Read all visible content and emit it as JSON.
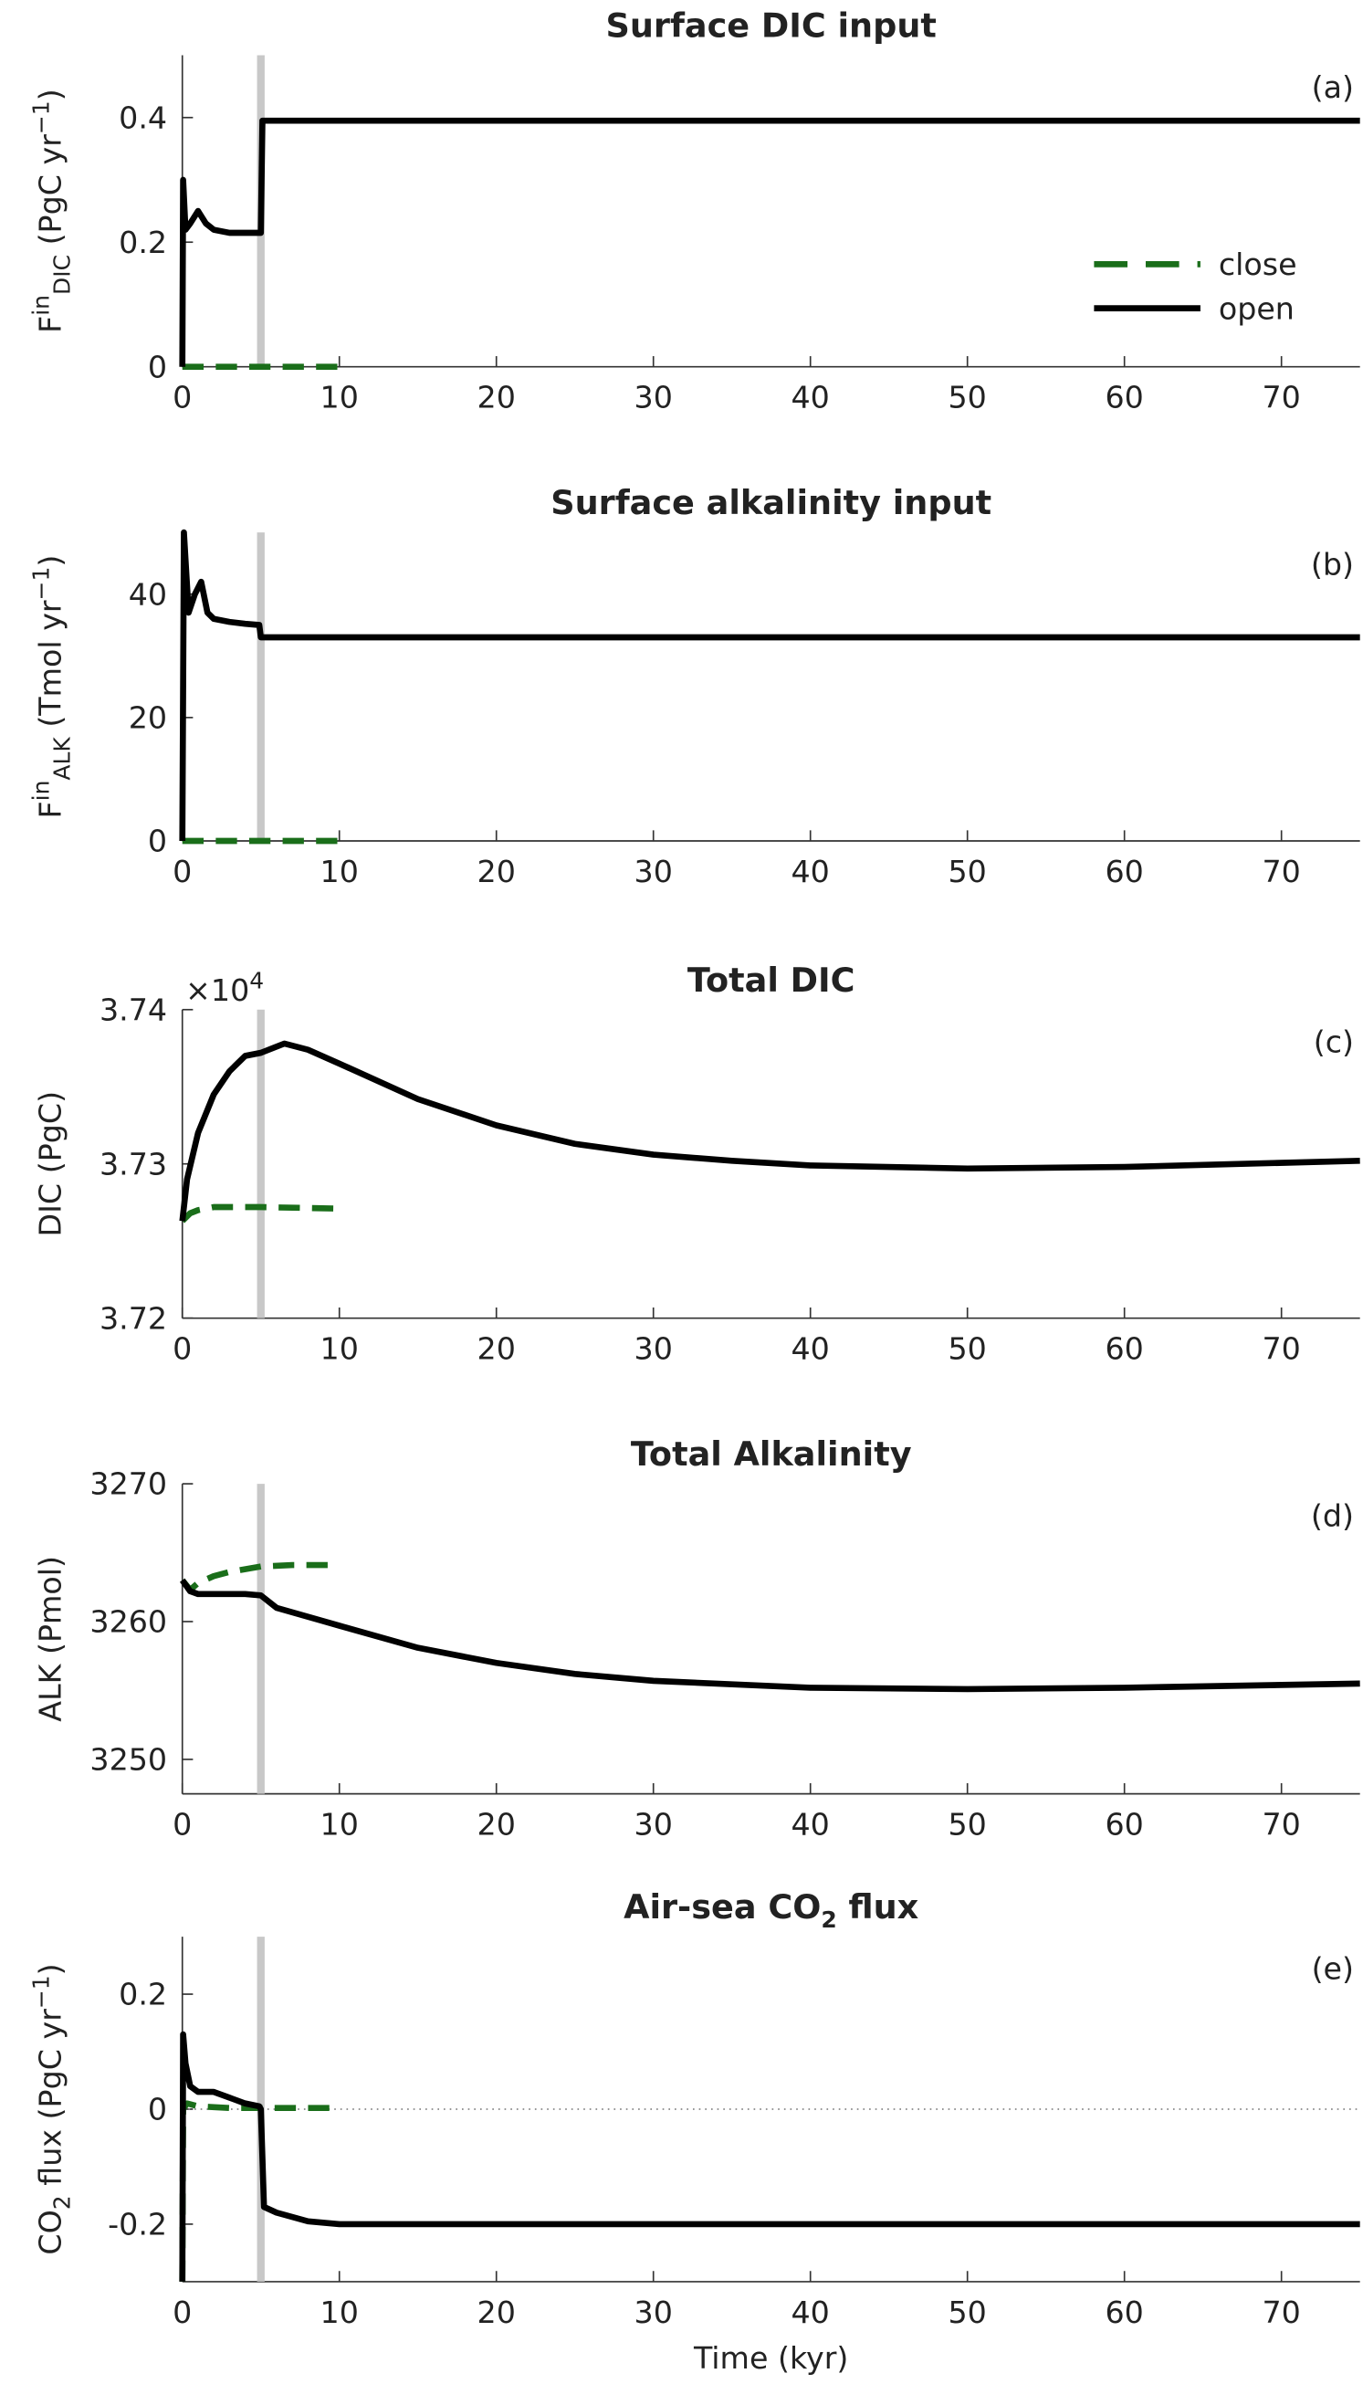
{
  "chart_data": [
    {
      "type": "line",
      "title": [
        {
          "text": "Surface DIC input"
        }
      ],
      "panel_label": "(a)",
      "ylabel": [
        {
          "text": "F"
        },
        {
          "text": "in",
          "style": "sup"
        },
        {
          "text": "DIC",
          "style": "sub"
        },
        {
          "text": " (PgC yr"
        },
        {
          "text": "−1",
          "style": "sup"
        },
        {
          "text": ")"
        }
      ],
      "xlim": [
        0,
        75
      ],
      "xticks": [
        0,
        10,
        20,
        30,
        40,
        50,
        60,
        70
      ],
      "ylim": [
        0,
        0.5
      ],
      "yticks": [
        0,
        0.2,
        0.4
      ],
      "vline": 5,
      "legend": "east",
      "series": [
        {
          "name": "close",
          "color": "#1a6e1a",
          "line_style": "dashed",
          "x": [
            0,
            10
          ],
          "values": [
            0,
            0
          ]
        },
        {
          "name": "open",
          "color": "#000000",
          "line_style": "solid",
          "x": [
            0,
            0.05,
            0.2,
            0.5,
            1,
            1.5,
            2,
            3,
            4,
            4.9,
            5,
            5.1,
            75
          ],
          "values": [
            0,
            0.3,
            0.22,
            0.23,
            0.25,
            0.23,
            0.22,
            0.215,
            0.215,
            0.215,
            0.215,
            0.395,
            0.395
          ]
        }
      ]
    },
    {
      "type": "line",
      "title": [
        {
          "text": "Surface alkalinity input"
        }
      ],
      "panel_label": "(b)",
      "ylabel": [
        {
          "text": "F"
        },
        {
          "text": "in",
          "style": "sup"
        },
        {
          "text": "ALK",
          "style": "sub"
        },
        {
          "text": " (Tmol yr"
        },
        {
          "text": "−1",
          "style": "sup"
        },
        {
          "text": ")"
        }
      ],
      "xlim": [
        0,
        75
      ],
      "xticks": [
        0,
        10,
        20,
        30,
        40,
        50,
        60,
        70
      ],
      "ylim": [
        0,
        50
      ],
      "yticks": [
        0,
        20,
        40
      ],
      "vline": 5,
      "series": [
        {
          "name": "close",
          "color": "#1a6e1a",
          "line_style": "dashed",
          "x": [
            0,
            10
          ],
          "values": [
            0,
            0
          ]
        },
        {
          "name": "open",
          "color": "#000000",
          "line_style": "solid",
          "x": [
            0,
            0.1,
            0.4,
            0.8,
            1.2,
            1.6,
            2,
            3,
            4,
            4.9,
            5,
            75
          ],
          "values": [
            0,
            50,
            37,
            40,
            42,
            37,
            36,
            35.5,
            35.2,
            35,
            33,
            33
          ]
        }
      ]
    },
    {
      "type": "line",
      "title": [
        {
          "text": "Total DIC"
        }
      ],
      "panel_label": "(c)",
      "ylabel": [
        {
          "text": "DIC (PgC)"
        }
      ],
      "y_multiplier": [
        {
          "text": "×10"
        },
        {
          "text": "4",
          "style": "sup"
        }
      ],
      "xlim": [
        0,
        75
      ],
      "xticks": [
        0,
        10,
        20,
        30,
        40,
        50,
        60,
        70
      ],
      "ylim": [
        3.72,
        3.74
      ],
      "yticks": [
        3.72,
        3.73,
        3.74
      ],
      "vline": 5,
      "series": [
        {
          "name": "close",
          "color": "#1a6e1a",
          "line_style": "dashed",
          "x": [
            0,
            0.5,
            1,
            2,
            3,
            5,
            10
          ],
          "values": [
            3.7263,
            3.7268,
            3.727,
            3.7272,
            3.7272,
            3.7272,
            3.7271
          ]
        },
        {
          "name": "open",
          "color": "#000000",
          "line_style": "solid",
          "x": [
            0,
            0.3,
            1,
            2,
            3,
            4,
            5,
            6.5,
            8,
            10,
            15,
            20,
            25,
            30,
            35,
            40,
            50,
            60,
            75
          ],
          "values": [
            3.7263,
            3.729,
            3.732,
            3.7345,
            3.736,
            3.737,
            3.7372,
            3.7378,
            3.7374,
            3.7365,
            3.7342,
            3.7325,
            3.7313,
            3.7306,
            3.7302,
            3.7299,
            3.7297,
            3.7298,
            3.7302
          ]
        }
      ]
    },
    {
      "type": "line",
      "title": [
        {
          "text": "Total Alkalinity"
        }
      ],
      "panel_label": "(d)",
      "ylabel": [
        {
          "text": "ALK (Pmol)"
        }
      ],
      "xlim": [
        0,
        75
      ],
      "xticks": [
        0,
        10,
        20,
        30,
        40,
        50,
        60,
        70
      ],
      "ylim": [
        3247.5,
        3270
      ],
      "yticks": [
        3250,
        3260,
        3270
      ],
      "vline": 5,
      "series": [
        {
          "name": "close",
          "color": "#1a6e1a",
          "line_style": "dashed",
          "x": [
            0,
            0.5,
            1,
            2,
            3,
            5,
            7,
            10
          ],
          "values": [
            3263,
            3262.3,
            3262.8,
            3263.3,
            3263.6,
            3264,
            3264.1,
            3264.1
          ]
        },
        {
          "name": "open",
          "color": "#000000",
          "line_style": "solid",
          "x": [
            0,
            0.5,
            1,
            2,
            3,
            4,
            5,
            6,
            10,
            15,
            20,
            25,
            30,
            40,
            50,
            60,
            75
          ],
          "values": [
            3263,
            3262.2,
            3262,
            3262,
            3262,
            3262,
            3261.9,
            3261,
            3259.7,
            3258.1,
            3257,
            3256.2,
            3255.7,
            3255.2,
            3255.1,
            3255.2,
            3255.5
          ]
        }
      ]
    },
    {
      "type": "line",
      "title": [
        {
          "text": "Air-sea CO"
        },
        {
          "text": "2",
          "style": "sub"
        },
        {
          "text": " flux"
        }
      ],
      "panel_label": "(e)",
      "ylabel": [
        {
          "text": "CO"
        },
        {
          "text": "2",
          "style": "sub"
        },
        {
          "text": " flux (PgC yr"
        },
        {
          "text": "−1",
          "style": "sup"
        },
        {
          "text": ")"
        }
      ],
      "xlabel": "Time (kyr)",
      "xlim": [
        0,
        75
      ],
      "xticks": [
        0,
        10,
        20,
        30,
        40,
        50,
        60,
        70
      ],
      "ylim": [
        -0.3,
        0.3
      ],
      "yticks": [
        -0.2,
        0,
        0.2
      ],
      "vline": 5,
      "hline": 0,
      "series": [
        {
          "name": "close",
          "color": "#1a6e1a",
          "line_style": "dashed",
          "x": [
            0,
            0.05,
            0.3,
            1,
            3,
            10
          ],
          "values": [
            -0.3,
            0,
            0.01,
            0.005,
            0.002,
            0.002
          ]
        },
        {
          "name": "open",
          "color": "#000000",
          "line_style": "solid",
          "x": [
            0,
            0.05,
            0.2,
            0.5,
            1,
            2,
            3,
            4,
            4.9,
            5,
            5.2,
            6,
            8,
            10,
            75
          ],
          "values": [
            -0.3,
            0.13,
            0.08,
            0.04,
            0.03,
            0.03,
            0.02,
            0.01,
            0.005,
            0,
            -0.17,
            -0.18,
            -0.195,
            -0.2,
            -0.2
          ]
        }
      ]
    }
  ]
}
